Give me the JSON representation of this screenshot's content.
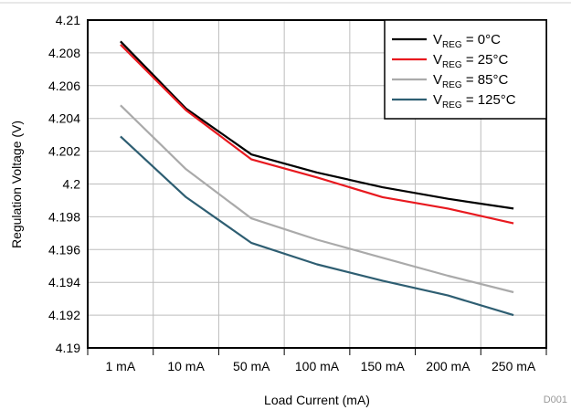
{
  "figure_id": "D001",
  "chart_data": {
    "type": "line",
    "title": "",
    "xlabel": "Load Current (mA)",
    "ylabel": "Regulation Voltage (V)",
    "categories": [
      "1 mA",
      "10 mA",
      "50 mA",
      "100 mA",
      "150 mA",
      "200 mA",
      "250 mA"
    ],
    "y_ticks": [
      "4.19",
      "4.192",
      "4.194",
      "4.196",
      "4.198",
      "4.2",
      "4.202",
      "4.204",
      "4.206",
      "4.208",
      "4.21"
    ],
    "ylim": [
      4.19,
      4.21
    ],
    "grid": true,
    "legend_position": "top-right",
    "series": [
      {
        "name_main": "V",
        "name_sub": "REG",
        "name_rest": " = 0°C",
        "color": "#000000",
        "values": [
          4.2087,
          4.2046,
          4.2018,
          4.2007,
          4.1998,
          4.1991,
          4.1985
        ]
      },
      {
        "name_main": "V",
        "name_sub": "REG",
        "name_rest": " = 25°C",
        "color": "#e8191f",
        "values": [
          4.2085,
          4.2045,
          4.2015,
          4.2004,
          4.1992,
          4.1985,
          4.1976
        ]
      },
      {
        "name_main": "V",
        "name_sub": "REG",
        "name_rest": " = 85°C",
        "color": "#aaaaaa",
        "values": [
          4.2048,
          4.2009,
          4.1979,
          4.1966,
          4.1955,
          4.1944,
          4.1934
        ]
      },
      {
        "name_main": "V",
        "name_sub": "REG",
        "name_rest": " = 125°C",
        "color": "#2e5e72",
        "values": [
          4.2029,
          4.1992,
          4.1964,
          4.1951,
          4.1941,
          4.1932,
          4.192
        ]
      }
    ]
  }
}
